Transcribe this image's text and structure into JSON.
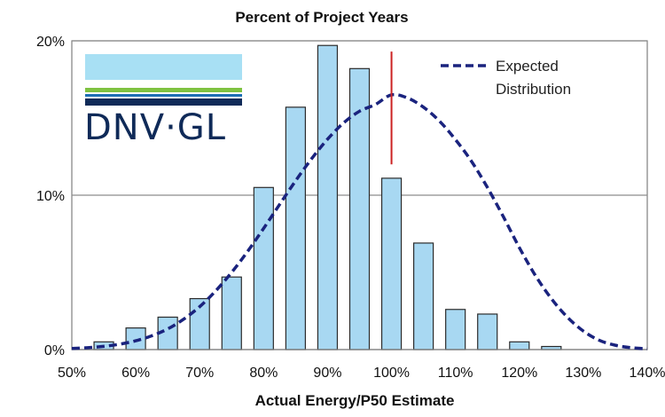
{
  "chart_data": {
    "type": "bar",
    "title": "Percent of Project Years",
    "xlabel": "Actual Energy/P50 Estimate",
    "ylabel": "",
    "xlim": [
      50,
      140
    ],
    "ylim": [
      0,
      20
    ],
    "x_ticks": [
      {
        "value": 50,
        "label": "50%"
      },
      {
        "value": 60,
        "label": "60%"
      },
      {
        "value": 70,
        "label": "70%"
      },
      {
        "value": 80,
        "label": "80%"
      },
      {
        "value": 90,
        "label": "90%"
      },
      {
        "value": 100,
        "label": "100%"
      },
      {
        "value": 110,
        "label": "110%"
      },
      {
        "value": 120,
        "label": "120%"
      },
      {
        "value": 130,
        "label": "130%"
      },
      {
        "value": 140,
        "label": "140%"
      }
    ],
    "y_ticks": [
      {
        "value": 0,
        "label": "0%"
      },
      {
        "value": 10,
        "label": "10%"
      },
      {
        "value": 20,
        "label": "20%"
      }
    ],
    "gridlines": [
      10,
      20
    ],
    "series": [
      {
        "name": "Percent of Project Years",
        "type": "bar",
        "color": "#a8d8f2",
        "edge_color": "#2b2b2b",
        "x": [
          55,
          60,
          65,
          70,
          75,
          80,
          85,
          90,
          95,
          100,
          105,
          110,
          115,
          120,
          125
        ],
        "values": [
          0.5,
          1.4,
          2.1,
          3.3,
          4.7,
          10.5,
          15.7,
          19.7,
          18.2,
          11.1,
          6.9,
          2.6,
          2.3,
          0.5,
          0.2
        ]
      },
      {
        "name": "Expected Distribution",
        "type": "line",
        "style": "dashed",
        "color": "#1a237e",
        "x": [
          50,
          52.5,
          55,
          57.5,
          60,
          62.5,
          65,
          67.5,
          70,
          72.5,
          75,
          77.5,
          80,
          82.5,
          85,
          87.5,
          90,
          92.5,
          95,
          97.5,
          100,
          102.5,
          105,
          107.5,
          110,
          112.5,
          115,
          117.5,
          120,
          122.5,
          125,
          127.5,
          130,
          132.5,
          135,
          137.5,
          140
        ],
        "values": [
          0.07,
          0.12,
          0.21,
          0.35,
          0.57,
          0.89,
          1.34,
          1.97,
          2.78,
          3.8,
          5.0,
          6.36,
          7.85,
          9.4,
          10.93,
          12.36,
          13.63,
          14.68,
          15.44,
          15.88,
          16.5,
          16.3,
          15.7,
          14.8,
          13.6,
          12.2,
          10.5,
          8.6,
          6.6,
          4.8,
          3.3,
          2.1,
          1.2,
          0.6,
          0.28,
          0.12,
          0.05
        ]
      }
    ],
    "reference_line": {
      "x": 100,
      "y_range": [
        12,
        19.3
      ],
      "color": "#cc2222"
    },
    "legend": {
      "position": "top-right",
      "entries": [
        {
          "label": "Expected\nDistribution",
          "line1": "Expected",
          "line2": "Distribution",
          "style": "dashed",
          "color": "#1a237e"
        }
      ]
    }
  },
  "logo": {
    "text": "DNV·GL",
    "colors": {
      "light_blue": "#a8e0f4",
      "green": "#7fc241",
      "blue": "#1d6fb5",
      "navy": "#0f2a58"
    }
  }
}
